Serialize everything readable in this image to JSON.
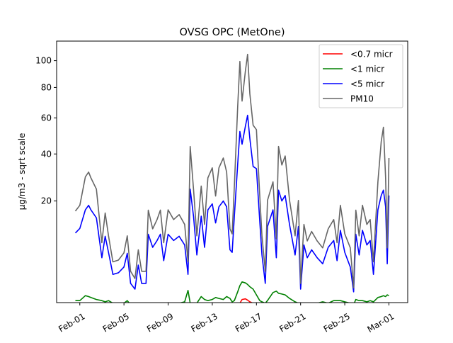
{
  "chart_data": {
    "type": "line",
    "title": "OVSG OPC (MetOne)",
    "xlabel": "",
    "ylabel": "µg/m3 - sqrt scale",
    "y_scale": "sqrt",
    "ylim": [
      0.22,
      116
    ],
    "xlim_days_from_feb01": [
      -2.1,
      29.7
    ],
    "x_ticks": [
      {
        "day": 0,
        "label": "Feb-01"
      },
      {
        "day": 4,
        "label": "Feb-05"
      },
      {
        "day": 8,
        "label": "Feb-09"
      },
      {
        "day": 12,
        "label": "Feb-13"
      },
      {
        "day": 16,
        "label": "Feb-17"
      },
      {
        "day": 20,
        "label": "Feb-21"
      },
      {
        "day": 24,
        "label": "Feb-25"
      },
      {
        "day": 28,
        "label": "Mar-01"
      }
    ],
    "y_ticks": [
      {
        "value": 20,
        "label": "20"
      },
      {
        "value": 40,
        "label": "40"
      },
      {
        "value": 60,
        "label": "60"
      },
      {
        "value": 80,
        "label": "80"
      },
      {
        "value": 100,
        "label": "100"
      }
    ],
    "grid": false,
    "legend_position": "top-right",
    "x_days_from_feb01": [
      -0.4,
      0,
      0.5,
      0.8,
      1,
      1.5,
      2,
      2.3,
      2.6,
      3,
      3.5,
      4,
      4.3,
      4.6,
      5,
      5.3,
      5.6,
      6,
      6.2,
      6.6,
      7,
      7.3,
      7.6,
      8,
      8.5,
      9,
      9.5,
      9.8,
      10,
      10.3,
      10.6,
      11,
      11.3,
      11.6,
      12,
      12.3,
      12.6,
      13,
      13.3,
      13.6,
      13.8,
      14,
      14.3,
      14.5,
      14.7,
      15,
      15.2,
      15.4,
      15.7,
      16,
      16.3,
      16.5,
      16.8,
      17,
      17.5,
      17.8,
      18,
      18.3,
      18.6,
      19,
      19.5,
      19.8,
      20,
      20.3,
      20.6,
      21,
      21.5,
      22,
      22.5,
      23,
      23.3,
      23.6,
      24,
      24.5,
      24.8,
      25,
      25.3,
      25.6,
      26,
      26.3,
      26.6,
      27,
      27.3,
      27.5,
      27.7,
      27.85,
      28
    ],
    "series": [
      {
        "name": "<0.7 micr",
        "color": "#ff0000",
        "values": [
          null,
          null,
          null,
          null,
          null,
          null,
          null,
          null,
          null,
          null,
          null,
          null,
          null,
          null,
          null,
          null,
          null,
          null,
          null,
          null,
          null,
          null,
          null,
          null,
          null,
          null,
          null,
          null,
          null,
          null,
          null,
          null,
          null,
          null,
          null,
          null,
          null,
          null,
          null,
          null,
          null,
          null,
          null,
          0.2,
          0.35,
          0.38,
          0.32,
          0.25,
          0.2,
          null,
          null,
          null,
          null,
          null,
          null,
          null,
          null,
          null,
          null,
          null,
          null,
          null,
          null,
          null,
          null,
          null,
          null,
          null,
          null,
          null,
          null,
          null,
          null,
          null,
          null,
          null,
          null,
          null,
          null,
          null,
          null,
          null,
          null,
          null,
          null,
          null,
          null
        ]
      },
      {
        "name": "<1 micr",
        "color": "#008000",
        "values": [
          0.3,
          0.3,
          0.55,
          0.5,
          0.45,
          0.35,
          0.3,
          0.25,
          0.3,
          0.2,
          0.2,
          0.2,
          0.3,
          0.15,
          0.15,
          0.15,
          0.1,
          0.1,
          0.15,
          0.2,
          0.2,
          0.2,
          0.15,
          0.2,
          0.2,
          0.2,
          0.25,
          0.9,
          0.2,
          0.2,
          0.2,
          0.5,
          0.35,
          0.3,
          0.35,
          0.45,
          0.4,
          0.35,
          0.5,
          0.4,
          0.25,
          0.3,
          0.8,
          1.3,
          1.65,
          1.55,
          1.4,
          1.2,
          1.0,
          0.6,
          0.3,
          0.25,
          0.2,
          0.3,
          0.75,
          0.85,
          0.7,
          0.65,
          0.6,
          0.4,
          0.25,
          0.2,
          0.15,
          0.2,
          0.15,
          0.2,
          0.2,
          0.25,
          0.2,
          0.3,
          0.3,
          0.3,
          0.25,
          0.2,
          0.15,
          0.35,
          0.3,
          0.3,
          0.25,
          0.3,
          0.25,
          0.45,
          0.5,
          0.55,
          0.5,
          0.6,
          0.55
        ]
      },
      {
        "name": "<5 micr",
        "color": "#0000ff",
        "values": [
          10.3,
          11.5,
          17,
          18.5,
          17,
          14.5,
          5,
          9.5,
          6,
          2.5,
          2.7,
          3.5,
          5.8,
          1.5,
          1,
          3.8,
          1.5,
          1.5,
          10,
          7,
          8.5,
          10,
          4.5,
          10,
          8.5,
          9.5,
          7.5,
          2.5,
          24.4,
          15,
          5.5,
          15,
          7,
          17,
          19,
          13,
          18,
          20,
          18,
          6.5,
          6,
          15,
          35,
          52,
          45,
          55,
          61.6,
          48,
          34,
          33,
          13.5,
          5.5,
          1.5,
          12,
          17,
          5,
          24,
          20,
          22,
          12.5,
          5.5,
          12,
          1,
          7.5,
          5,
          6.5,
          5,
          4,
          7,
          8.5,
          4.5,
          11,
          6,
          3.5,
          0.8,
          10,
          5.5,
          11,
          7.5,
          8.5,
          2.5,
          17,
          22,
          24,
          18,
          4,
          22
        ]
      },
      {
        "name": "PM10",
        "color": "#666666",
        "values": [
          16.6,
          18.5,
          29.4,
          31.5,
          29,
          24.4,
          8,
          16,
          9.6,
          4.3,
          4.6,
          5.9,
          9.6,
          2.9,
          2,
          6.5,
          2.9,
          2.9,
          16.9,
          11.4,
          14,
          16.9,
          8,
          17,
          14,
          15.5,
          12.6,
          4.3,
          43.8,
          24.4,
          9.6,
          25.6,
          12.6,
          29,
          33.4,
          21.8,
          33.4,
          38,
          31.5,
          11.4,
          10.1,
          25.6,
          67,
          99.4,
          70.7,
          92,
          105,
          75.5,
          55.6,
          53,
          21.8,
          9.6,
          2.9,
          20.2,
          27.3,
          8.9,
          43.8,
          34.7,
          39,
          20.2,
          9.6,
          20.2,
          1.5,
          12.6,
          8.4,
          10.7,
          8.4,
          6.9,
          11.4,
          14,
          8,
          18.5,
          10.1,
          6.9,
          1.1,
          16.9,
          9.6,
          18.5,
          12.6,
          14,
          4.3,
          27.3,
          46.4,
          54.4,
          29,
          6.9,
          38
        ]
      }
    ]
  }
}
